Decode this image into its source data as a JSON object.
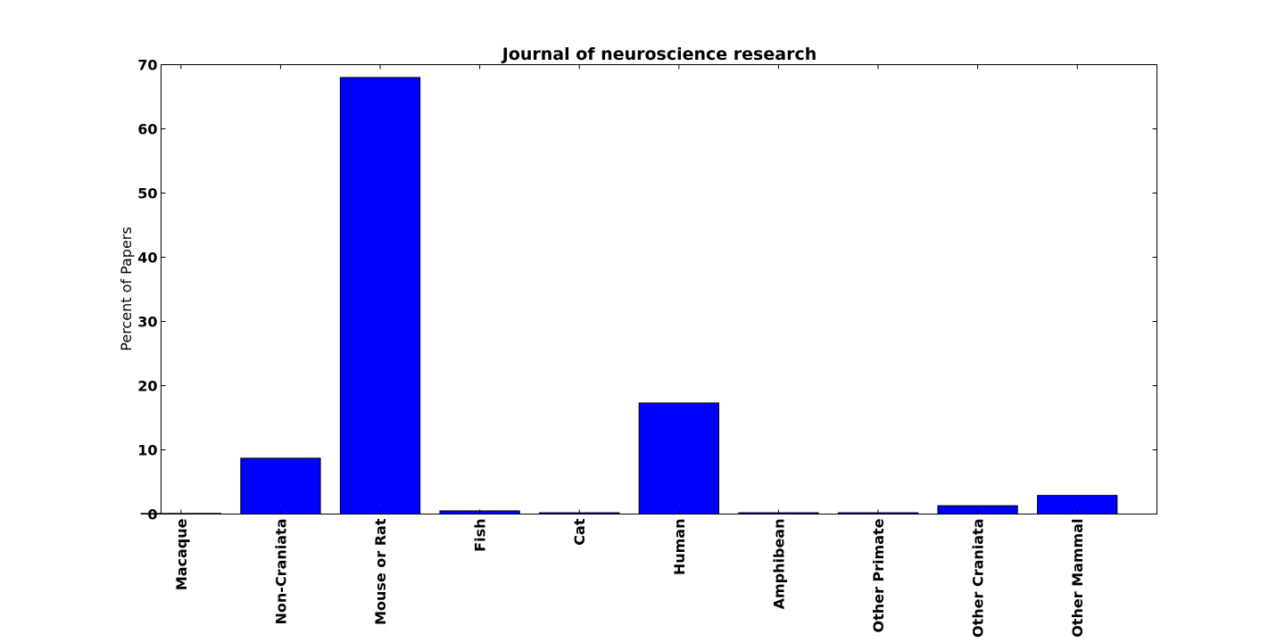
{
  "chart_data": {
    "type": "bar",
    "title": "Journal of neuroscience research",
    "xlabel": "",
    "ylabel": "Percent of Papers",
    "categories": [
      "Macaque",
      "Non-Craniata",
      "Mouse or Rat",
      "Fish",
      "Cat",
      "Human",
      "Amphibean",
      "Other Primate",
      "Other Craniata",
      "Other Mammal"
    ],
    "values": [
      0.1,
      8.7,
      68.0,
      0.5,
      0.2,
      17.3,
      0.2,
      0.2,
      1.3,
      2.9
    ],
    "ylim": [
      0,
      70
    ],
    "yticks": [
      0,
      10,
      20,
      30,
      40,
      50,
      60,
      70
    ],
    "bar_color": "#0000ff",
    "grid": false,
    "legend": "none"
  }
}
